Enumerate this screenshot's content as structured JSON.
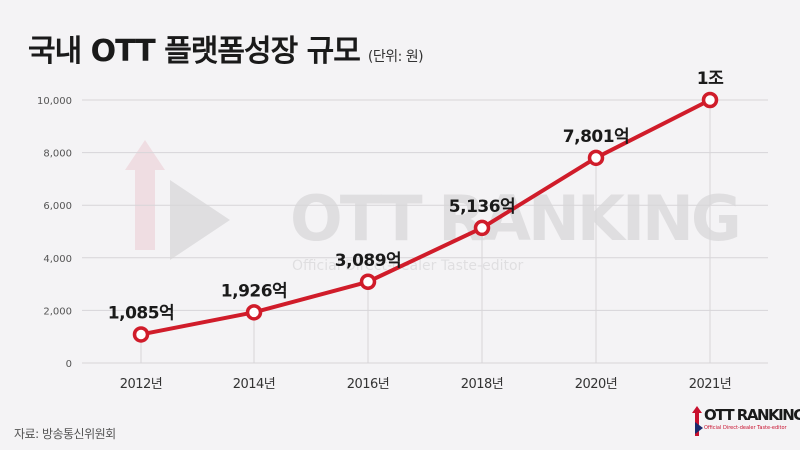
{
  "header": {
    "title": "국내 OTT 플랫폼성장 규모",
    "unit": "(단위: 원)"
  },
  "footer": {
    "source": "자료: 방송통신위원회"
  },
  "watermark": {
    "brand": "OTT RANKING",
    "tagline": "Official Direct-dealer Taste-editor"
  },
  "colors": {
    "line": "#d01c2a",
    "background": "#f4f3f5",
    "grid": "#d7d5d8",
    "text": "#1a1a1a"
  },
  "chart_data": {
    "type": "line",
    "title": "국내 OTT 플랫폼성장 규모",
    "categories": [
      "2012년",
      "2014년",
      "2016년",
      "2018년",
      "2020년",
      "2021년"
    ],
    "values": [
      1085,
      1926,
      3089,
      5136,
      7801,
      10000
    ],
    "data_labels": [
      "1,085억",
      "1,926억",
      "3,089억",
      "5,136억",
      "7,801억",
      "1조"
    ],
    "y_ticks": [
      0,
      2000,
      4000,
      6000,
      8000,
      10000
    ],
    "y_tick_labels": [
      "0",
      "2,000",
      "4,000",
      "6,000",
      "8,000",
      "10,000"
    ],
    "ylim": [
      0,
      10000
    ],
    "grid": true,
    "xlabel": "",
    "ylabel": ""
  }
}
